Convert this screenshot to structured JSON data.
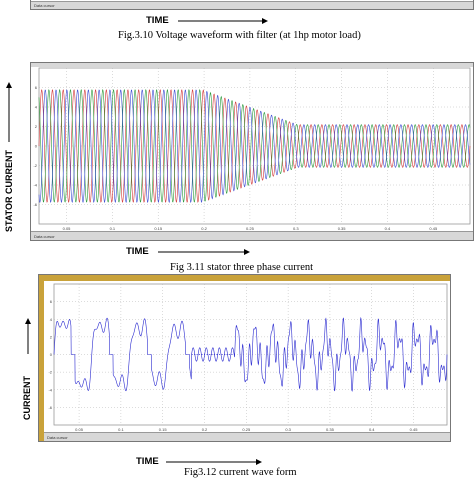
{
  "top_strip": {
    "status_text": "Data cursor",
    "time_label": "TIME",
    "caption": "Fig.3.10 Voltage  waveform with filter (at 1hp motor load)"
  },
  "figure_311": {
    "status_text": "Data cursor",
    "ylabel": "STATOR CURRENT",
    "xlabel": "TIME",
    "caption": "Fig 3.11 stator three phase current",
    "yticks": [
      "6",
      "4",
      "2",
      "0",
      "-2",
      "-4",
      "-6"
    ],
    "xticks": [
      "0.05",
      "0.1",
      "0.15",
      "0.2",
      "0.25",
      "0.3",
      "0.35",
      "0.4",
      "0.45"
    ],
    "colors": {
      "phase_a": "#d23a3a",
      "phase_b": "#2a9a3a",
      "phase_c": "#3a4ad2"
    }
  },
  "figure_312": {
    "status_text": "Data cursor",
    "ylabel": "CURRENT",
    "xlabel": "TIME",
    "caption": "Fig3.12 current wave form",
    "yticks": [
      "6",
      "4",
      "2",
      "0",
      "-2",
      "-4",
      "-6"
    ],
    "xticks": [
      "0.05",
      "0.1",
      "0.15",
      "0.2",
      "0.25",
      "0.3",
      "0.35",
      "0.4",
      "0.45"
    ],
    "colors": {
      "trace": "#2a2ad0"
    }
  }
}
